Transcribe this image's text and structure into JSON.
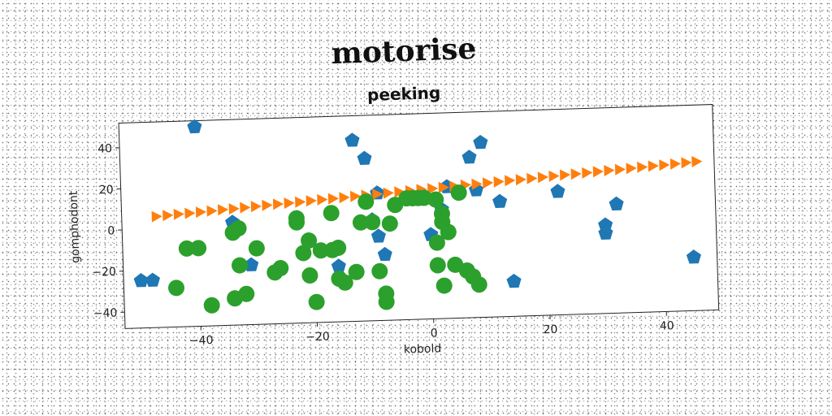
{
  "chart_data": {
    "type": "scatter",
    "title": "motorise",
    "subtitle": "peeking",
    "xlabel": "kobold",
    "ylabel": "gomphodont",
    "xlim": [
      -53,
      49
    ],
    "ylim": [
      -48,
      52
    ],
    "xticks": [
      -40,
      -20,
      0,
      20,
      40
    ],
    "yticks": [
      -40,
      -20,
      0,
      20,
      40
    ],
    "xtick_labels": [
      "−40",
      "−20",
      "0",
      "20",
      "40"
    ],
    "ytick_labels": [
      "−40",
      "−20",
      "0",
      "20",
      "40"
    ],
    "grid": false,
    "legend": "none",
    "series": [
      {
        "marker": "pentagon",
        "color": "#1f77b4",
        "points": [
          [
            -40,
            49
          ],
          [
            -13,
            40
          ],
          [
            -11,
            31
          ],
          [
            -50,
            -25
          ],
          [
            -48,
            -25
          ],
          [
            -34,
            2
          ],
          [
            -31,
            -19
          ],
          [
            -16,
            -21
          ],
          [
            -10,
            1
          ],
          [
            -9,
            -7
          ],
          [
            -8,
            -16
          ],
          [
            -9,
            14
          ],
          [
            0,
            -7
          ],
          [
            2,
            5
          ],
          [
            3,
            16
          ],
          [
            7,
            30
          ],
          [
            9,
            37
          ],
          [
            8,
            14
          ],
          [
            12,
            8
          ],
          [
            14,
            -31
          ],
          [
            22,
            12
          ],
          [
            30,
            -5
          ],
          [
            30,
            -9
          ],
          [
            32,
            5
          ],
          [
            45,
            -22
          ]
        ]
      },
      {
        "marker": "triangle-right",
        "color": "#ff7f0e",
        "points": [
          [
            -47.0,
            6.0
          ],
          [
            -45.1,
            6.4
          ],
          [
            -43.2,
            6.8
          ],
          [
            -41.3,
            7.1
          ],
          [
            -39.4,
            7.5
          ],
          [
            -37.5,
            7.9
          ],
          [
            -35.6,
            8.3
          ],
          [
            -33.7,
            8.6
          ],
          [
            -31.8,
            9.0
          ],
          [
            -29.9,
            9.4
          ],
          [
            -28.0,
            9.8
          ],
          [
            -26.1,
            10.2
          ],
          [
            -24.2,
            10.5
          ],
          [
            -22.3,
            10.9
          ],
          [
            -20.4,
            11.3
          ],
          [
            -18.5,
            11.7
          ],
          [
            -16.6,
            12.0
          ],
          [
            -14.7,
            12.4
          ],
          [
            -12.8,
            12.8
          ],
          [
            -10.9,
            13.2
          ],
          [
            -9.0,
            13.5
          ],
          [
            -7.1,
            13.9
          ],
          [
            -5.2,
            14.3
          ],
          [
            -3.3,
            14.7
          ],
          [
            -1.4,
            15.1
          ],
          [
            0.5,
            15.4
          ],
          [
            2.4,
            15.8
          ],
          [
            4.3,
            16.2
          ],
          [
            6.2,
            16.6
          ],
          [
            8.1,
            16.9
          ],
          [
            10.0,
            17.3
          ],
          [
            11.9,
            17.7
          ],
          [
            13.8,
            18.1
          ],
          [
            15.7,
            18.4
          ],
          [
            17.6,
            18.8
          ],
          [
            19.5,
            19.2
          ],
          [
            21.4,
            19.6
          ],
          [
            23.3,
            20.0
          ],
          [
            25.2,
            20.3
          ],
          [
            27.1,
            20.7
          ],
          [
            29.0,
            21.1
          ],
          [
            30.9,
            21.5
          ],
          [
            32.8,
            21.8
          ],
          [
            34.7,
            22.2
          ],
          [
            36.6,
            22.6
          ],
          [
            38.5,
            23.0
          ],
          [
            40.4,
            23.3
          ],
          [
            42.3,
            23.7
          ],
          [
            44.2,
            24.1
          ],
          [
            46.0,
            24.5
          ]
        ]
      },
      {
        "marker": "circle",
        "color": "#2ca02c",
        "points": [
          [
            -42,
            -10
          ],
          [
            -40,
            -10
          ],
          [
            -44,
            -29
          ],
          [
            -38,
            -38
          ],
          [
            -34,
            -3
          ],
          [
            -33,
            -1
          ],
          [
            -33,
            -19
          ],
          [
            -32,
            -33
          ],
          [
            -30,
            -11
          ],
          [
            -34,
            -35
          ],
          [
            -27,
            -23
          ],
          [
            -26,
            -21
          ],
          [
            -23,
            3
          ],
          [
            -23,
            1
          ],
          [
            -22,
            -14
          ],
          [
            -21,
            -8
          ],
          [
            -21,
            -25
          ],
          [
            -20,
            -38
          ],
          [
            -19,
            -13
          ],
          [
            -17,
            -13
          ],
          [
            -17,
            5
          ],
          [
            -16,
            -12
          ],
          [
            -16,
            -27
          ],
          [
            -15,
            -29
          ],
          [
            -13,
            -24
          ],
          [
            -12,
            0
          ],
          [
            -11,
            10
          ],
          [
            -10,
            0
          ],
          [
            -9,
            -24
          ],
          [
            -8,
            -35
          ],
          [
            -8,
            -39
          ],
          [
            -7,
            -1
          ],
          [
            -6,
            8
          ],
          [
            -4,
            11
          ],
          [
            -3,
            11
          ],
          [
            -2,
            11
          ],
          [
            -1,
            11
          ],
          [
            1,
            10
          ],
          [
            2,
            3
          ],
          [
            2,
            -1
          ],
          [
            1,
            -11
          ],
          [
            1,
            -22
          ],
          [
            2,
            -32
          ],
          [
            3,
            -6
          ],
          [
            4,
            -22
          ],
          [
            5,
            13
          ],
          [
            6,
            -25
          ],
          [
            7,
            -28
          ],
          [
            8,
            -32
          ]
        ]
      }
    ]
  }
}
